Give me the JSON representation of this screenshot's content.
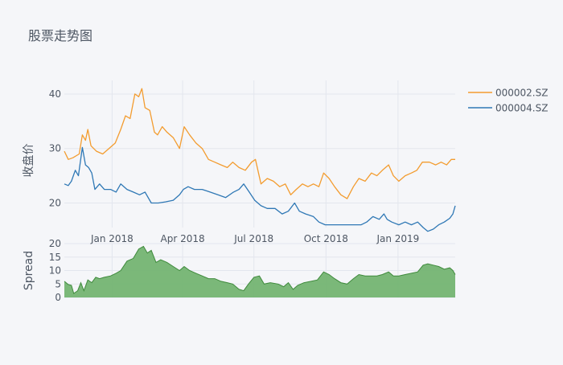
{
  "title": "股票走势图",
  "colors": {
    "background": "#f5f6f9",
    "grid": "#e3e6ee",
    "text": "#4d5663",
    "series0": "#f39c2f",
    "series1": "#2f78b5",
    "spread_fill": "#74b472",
    "spread_line": "#3f8a3c"
  },
  "chart_data": [
    {
      "type": "line",
      "title": "股票走势图",
      "ylabel": "收盘价",
      "xlabel": "",
      "ylim": [
        15.5,
        42.5
      ],
      "yticks": [
        20,
        30,
        40
      ],
      "ytick_labels": [
        "20",
        "30",
        "40"
      ],
      "xlim": [
        "2017-11-01",
        "2019-03-15"
      ],
      "xticks": [
        "2018-01-01",
        "2018-04-01",
        "2018-07-01",
        "2018-10-01",
        "2019-01-01"
      ],
      "xtick_labels": [
        "Jan 2018",
        "Apr 2018",
        "Jul 2018",
        "Oct 2018",
        "Jan 2019"
      ],
      "grid": true,
      "legend_position": "top-right",
      "series": [
        {
          "name": "000002.SZ",
          "points": [
            [
              "2017-11-01",
              29.5
            ],
            [
              "2017-11-06",
              28.0
            ],
            [
              "2017-11-12",
              28.3
            ],
            [
              "2017-11-20",
              29.0
            ],
            [
              "2017-11-24",
              32.5
            ],
            [
              "2017-11-28",
              31.5
            ],
            [
              "2017-12-01",
              33.5
            ],
            [
              "2017-12-05",
              30.5
            ],
            [
              "2017-12-12",
              29.5
            ],
            [
              "2017-12-20",
              29.0
            ],
            [
              "2017-12-28",
              30.0
            ],
            [
              "2018-01-05",
              31.0
            ],
            [
              "2018-01-12",
              33.5
            ],
            [
              "2018-01-18",
              36.0
            ],
            [
              "2018-01-24",
              35.5
            ],
            [
              "2018-01-30",
              40.0
            ],
            [
              "2018-02-04",
              39.5
            ],
            [
              "2018-02-08",
              41.0
            ],
            [
              "2018-02-12",
              37.5
            ],
            [
              "2018-02-18",
              37.0
            ],
            [
              "2018-02-24",
              33.0
            ],
            [
              "2018-02-28",
              32.5
            ],
            [
              "2018-03-06",
              34.0
            ],
            [
              "2018-03-12",
              33.0
            ],
            [
              "2018-03-20",
              32.0
            ],
            [
              "2018-03-28",
              30.0
            ],
            [
              "2018-04-03",
              34.0
            ],
            [
              "2018-04-10",
              32.5
            ],
            [
              "2018-04-18",
              31.0
            ],
            [
              "2018-04-26",
              30.0
            ],
            [
              "2018-05-04",
              28.0
            ],
            [
              "2018-05-12",
              27.5
            ],
            [
              "2018-05-20",
              27.0
            ],
            [
              "2018-05-28",
              26.5
            ],
            [
              "2018-06-04",
              27.5
            ],
            [
              "2018-06-12",
              26.5
            ],
            [
              "2018-06-20",
              26.0
            ],
            [
              "2018-06-28",
              27.5
            ],
            [
              "2018-07-03",
              28.0
            ],
            [
              "2018-07-10",
              23.5
            ],
            [
              "2018-07-18",
              24.5
            ],
            [
              "2018-07-26",
              24.0
            ],
            [
              "2018-08-03",
              23.0
            ],
            [
              "2018-08-10",
              23.5
            ],
            [
              "2018-08-17",
              21.5
            ],
            [
              "2018-08-24",
              22.5
            ],
            [
              "2018-09-01",
              23.5
            ],
            [
              "2018-09-08",
              23.0
            ],
            [
              "2018-09-15",
              23.5
            ],
            [
              "2018-09-22",
              23.0
            ],
            [
              "2018-09-28",
              25.5
            ],
            [
              "2018-10-05",
              24.5
            ],
            [
              "2018-10-12",
              23.0
            ],
            [
              "2018-10-20",
              21.5
            ],
            [
              "2018-10-28",
              20.8
            ],
            [
              "2018-11-05",
              23.0
            ],
            [
              "2018-11-12",
              24.5
            ],
            [
              "2018-11-20",
              24.0
            ],
            [
              "2018-11-28",
              25.5
            ],
            [
              "2018-12-05",
              25.0
            ],
            [
              "2018-12-12",
              26.0
            ],
            [
              "2018-12-20",
              27.0
            ],
            [
              "2018-12-26",
              25.0
            ],
            [
              "2019-01-02",
              24.0
            ],
            [
              "2019-01-10",
              25.0
            ],
            [
              "2019-01-18",
              25.5
            ],
            [
              "2019-01-25",
              26.0
            ],
            [
              "2019-02-01",
              27.5
            ],
            [
              "2019-02-10",
              27.5
            ],
            [
              "2019-02-18",
              27.0
            ],
            [
              "2019-02-25",
              27.5
            ],
            [
              "2019-03-04",
              27.0
            ],
            [
              "2019-03-10",
              28.0
            ],
            [
              "2019-03-15",
              28.0
            ]
          ]
        },
        {
          "name": "000004.SZ",
          "points": [
            [
              "2017-11-01",
              23.5
            ],
            [
              "2017-11-06",
              23.2
            ],
            [
              "2017-11-10",
              24.0
            ],
            [
              "2017-11-15",
              26.0
            ],
            [
              "2017-11-19",
              25.0
            ],
            [
              "2017-11-24",
              30.2
            ],
            [
              "2017-11-28",
              27.0
            ],
            [
              "2017-12-02",
              26.5
            ],
            [
              "2017-12-06",
              25.5
            ],
            [
              "2017-12-10",
              22.5
            ],
            [
              "2017-12-16",
              23.5
            ],
            [
              "2017-12-22",
              22.5
            ],
            [
              "2017-12-30",
              22.5
            ],
            [
              "2018-01-06",
              22.0
            ],
            [
              "2018-01-12",
              23.5
            ],
            [
              "2018-01-20",
              22.5
            ],
            [
              "2018-01-28",
              22.0
            ],
            [
              "2018-02-05",
              21.5
            ],
            [
              "2018-02-12",
              22.0
            ],
            [
              "2018-02-20",
              20.0
            ],
            [
              "2018-03-01",
              20.0
            ],
            [
              "2018-03-10",
              20.2
            ],
            [
              "2018-03-20",
              20.5
            ],
            [
              "2018-03-28",
              21.5
            ],
            [
              "2018-04-02",
              22.5
            ],
            [
              "2018-04-08",
              23.0
            ],
            [
              "2018-04-16",
              22.5
            ],
            [
              "2018-04-26",
              22.5
            ],
            [
              "2018-05-06",
              22.0
            ],
            [
              "2018-05-16",
              21.5
            ],
            [
              "2018-05-26",
              21.0
            ],
            [
              "2018-06-05",
              22.0
            ],
            [
              "2018-06-12",
              22.5
            ],
            [
              "2018-06-18",
              23.5
            ],
            [
              "2018-06-25",
              22.0
            ],
            [
              "2018-07-02",
              20.5
            ],
            [
              "2018-07-10",
              19.5
            ],
            [
              "2018-07-18",
              19.0
            ],
            [
              "2018-07-28",
              19.0
            ],
            [
              "2018-08-06",
              18.0
            ],
            [
              "2018-08-14",
              18.5
            ],
            [
              "2018-08-22",
              20.0
            ],
            [
              "2018-08-28",
              18.5
            ],
            [
              "2018-09-05",
              18.0
            ],
            [
              "2018-09-15",
              17.5
            ],
            [
              "2018-09-22",
              16.5
            ],
            [
              "2018-09-30",
              16.0
            ],
            [
              "2018-10-10",
              16.0
            ],
            [
              "2018-10-20",
              16.0
            ],
            [
              "2018-10-30",
              16.0
            ],
            [
              "2018-11-08",
              16.0
            ],
            [
              "2018-11-15",
              16.0
            ],
            [
              "2018-11-22",
              16.5
            ],
            [
              "2018-11-30",
              17.5
            ],
            [
              "2018-12-08",
              17.0
            ],
            [
              "2018-12-14",
              18.0
            ],
            [
              "2018-12-18",
              17.0
            ],
            [
              "2018-12-24",
              16.5
            ],
            [
              "2019-01-02",
              16.0
            ],
            [
              "2019-01-10",
              16.5
            ],
            [
              "2019-01-18",
              16.0
            ],
            [
              "2019-01-26",
              16.5
            ],
            [
              "2019-02-02",
              15.5
            ],
            [
              "2019-02-08",
              14.8
            ],
            [
              "2019-02-15",
              15.2
            ],
            [
              "2019-02-22",
              16.0
            ],
            [
              "2019-03-01",
              16.5
            ],
            [
              "2019-03-08",
              17.2
            ],
            [
              "2019-03-12",
              18.0
            ],
            [
              "2019-03-15",
              19.5
            ]
          ]
        }
      ]
    },
    {
      "type": "area",
      "ylabel": "Spread",
      "ylim": [
        0,
        20
      ],
      "yticks": [
        0,
        5,
        10,
        15,
        20
      ],
      "ytick_labels": [
        "0",
        "5",
        "10",
        "15",
        "20"
      ],
      "grid": true,
      "series": [
        {
          "points": [
            [
              "2017-11-01",
              6.0
            ],
            [
              "2017-11-06",
              4.8
            ],
            [
              "2017-11-10",
              4.5
            ],
            [
              "2017-11-13",
              1.5
            ],
            [
              "2017-11-18",
              2.5
            ],
            [
              "2017-11-22",
              5.5
            ],
            [
              "2017-11-26",
              2.5
            ],
            [
              "2017-12-01",
              6.5
            ],
            [
              "2017-12-06",
              5.5
            ],
            [
              "2017-12-11",
              7.5
            ],
            [
              "2017-12-16",
              7.0
            ],
            [
              "2017-12-22",
              7.5
            ],
            [
              "2017-12-30",
              8.0
            ],
            [
              "2018-01-06",
              9.0
            ],
            [
              "2018-01-12",
              10.0
            ],
            [
              "2018-01-20",
              13.5
            ],
            [
              "2018-01-28",
              14.5
            ],
            [
              "2018-02-04",
              18.0
            ],
            [
              "2018-02-10",
              19.0
            ],
            [
              "2018-02-15",
              16.5
            ],
            [
              "2018-02-20",
              17.5
            ],
            [
              "2018-02-26",
              13.0
            ],
            [
              "2018-03-04",
              14.0
            ],
            [
              "2018-03-12",
              13.0
            ],
            [
              "2018-03-20",
              11.5
            ],
            [
              "2018-03-28",
              10.0
            ],
            [
              "2018-04-03",
              11.5
            ],
            [
              "2018-04-10",
              10.0
            ],
            [
              "2018-04-18",
              9.0
            ],
            [
              "2018-04-26",
              8.0
            ],
            [
              "2018-05-04",
              7.0
            ],
            [
              "2018-05-12",
              7.0
            ],
            [
              "2018-05-20",
              6.0
            ],
            [
              "2018-05-28",
              5.5
            ],
            [
              "2018-06-04",
              5.0
            ],
            [
              "2018-06-12",
              3.0
            ],
            [
              "2018-06-18",
              2.5
            ],
            [
              "2018-06-24",
              5.0
            ],
            [
              "2018-07-01",
              7.5
            ],
            [
              "2018-07-08",
              8.0
            ],
            [
              "2018-07-14",
              5.0
            ],
            [
              "2018-07-22",
              5.5
            ],
            [
              "2018-08-01",
              5.0
            ],
            [
              "2018-08-08",
              4.0
            ],
            [
              "2018-08-14",
              5.5
            ],
            [
              "2018-08-20",
              3.0
            ],
            [
              "2018-08-26",
              4.5
            ],
            [
              "2018-09-03",
              5.5
            ],
            [
              "2018-09-12",
              6.0
            ],
            [
              "2018-09-20",
              6.5
            ],
            [
              "2018-09-28",
              9.5
            ],
            [
              "2018-10-05",
              8.5
            ],
            [
              "2018-10-12",
              7.0
            ],
            [
              "2018-10-20",
              5.5
            ],
            [
              "2018-10-28",
              5.0
            ],
            [
              "2018-11-05",
              7.0
            ],
            [
              "2018-11-12",
              8.5
            ],
            [
              "2018-11-20",
              8.0
            ],
            [
              "2018-11-28",
              8.0
            ],
            [
              "2018-12-05",
              8.0
            ],
            [
              "2018-12-12",
              8.5
            ],
            [
              "2018-12-20",
              9.5
            ],
            [
              "2018-12-26",
              8.0
            ],
            [
              "2019-01-02",
              8.0
            ],
            [
              "2019-01-10",
              8.5
            ],
            [
              "2019-01-18",
              9.0
            ],
            [
              "2019-01-26",
              9.5
            ],
            [
              "2019-02-02",
              12.0
            ],
            [
              "2019-02-08",
              12.5
            ],
            [
              "2019-02-15",
              12.0
            ],
            [
              "2019-02-22",
              11.5
            ],
            [
              "2019-03-01",
              10.5
            ],
            [
              "2019-03-08",
              11.0
            ],
            [
              "2019-03-12",
              10.0
            ],
            [
              "2019-03-15",
              8.5
            ]
          ]
        }
      ]
    }
  ]
}
